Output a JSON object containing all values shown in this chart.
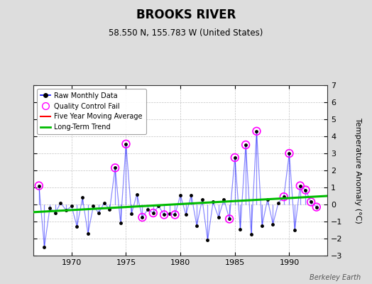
{
  "title": "BROOKS RIVER",
  "subtitle": "58.550 N, 155.783 W (United States)",
  "ylabel": "Temperature Anomaly (°C)",
  "attribution": "Berkeley Earth",
  "background_color": "#dddddd",
  "plot_bg_color": "#ffffff",
  "ylim": [
    -3,
    7
  ],
  "yticks": [
    -3,
    -2,
    -1,
    0,
    1,
    2,
    3,
    4,
    5,
    6,
    7
  ],
  "xlim": [
    1966.5,
    1993.5
  ],
  "xticks": [
    1970,
    1975,
    1980,
    1985,
    1990
  ],
  "raw_data": {
    "years": [
      1967.0,
      1967.5,
      1968.0,
      1968.5,
      1969.0,
      1969.5,
      1970.0,
      1970.5,
      1971.0,
      1971.5,
      1972.0,
      1972.5,
      1973.0,
      1973.5,
      1974.0,
      1974.5,
      1975.0,
      1975.5,
      1976.0,
      1976.5,
      1977.0,
      1977.5,
      1978.0,
      1978.5,
      1979.0,
      1979.5,
      1980.0,
      1980.5,
      1981.0,
      1981.5,
      1982.0,
      1982.5,
      1983.0,
      1983.5,
      1984.0,
      1984.5,
      1985.0,
      1985.5,
      1986.0,
      1986.5,
      1987.0,
      1987.5,
      1988.0,
      1988.5,
      1989.0,
      1989.5,
      1990.0,
      1990.5,
      1991.0,
      1991.5,
      1992.0,
      1992.5
    ],
    "values": [
      1.1,
      -2.5,
      -0.2,
      -0.5,
      0.1,
      -0.35,
      -0.1,
      -1.3,
      0.4,
      -1.7,
      -0.1,
      -0.5,
      0.1,
      -0.3,
      2.15,
      -1.1,
      3.55,
      -0.55,
      0.6,
      -0.75,
      -0.3,
      -0.5,
      -0.1,
      -0.6,
      -0.55,
      -0.6,
      0.55,
      -0.6,
      0.55,
      -1.25,
      0.3,
      -2.1,
      0.15,
      -0.75,
      0.3,
      -0.85,
      2.75,
      -1.45,
      3.5,
      -1.75,
      4.3,
      -1.25,
      0.3,
      -1.15,
      0.1,
      0.45,
      3.0,
      -1.5,
      1.1,
      0.85,
      0.15,
      -0.15
    ]
  },
  "qc_fail_years": [
    1967.0,
    1974.0,
    1975.0,
    1976.5,
    1977.5,
    1978.5,
    1979.5,
    1984.5,
    1985.0,
    1986.0,
    1987.0,
    1989.5,
    1990.0,
    1991.0,
    1991.5,
    1992.0,
    1992.5
  ],
  "qc_fail_values": [
    1.1,
    2.15,
    3.55,
    -0.75,
    -0.5,
    -0.6,
    -0.6,
    -0.85,
    2.75,
    3.5,
    4.3,
    0.45,
    3.0,
    1.1,
    0.85,
    0.15,
    -0.15
  ],
  "trend_x": [
    1966.5,
    1993.5
  ],
  "trend_y": [
    -0.45,
    0.5
  ],
  "line_color": "#0000ff",
  "line_alpha": 0.45,
  "dot_color": "#000000",
  "qc_color": "#ff00ff",
  "trend_color": "#00bb00",
  "ma_color": "#ff0000"
}
